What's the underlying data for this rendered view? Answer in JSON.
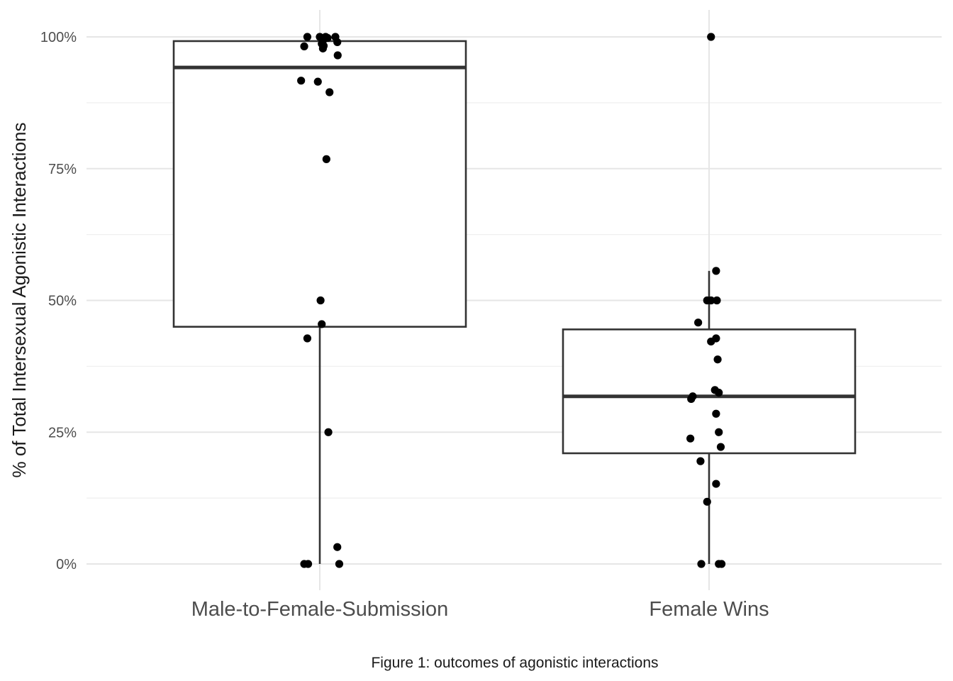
{
  "chart_data": {
    "type": "boxplot",
    "ylabel": "% of Total Intersexual Agonistic Interactions",
    "xlabel": "",
    "caption": "Figure 1: outcomes of agonistic interactions",
    "ylim": [
      0,
      1
    ],
    "y_ticks": [
      {
        "value": 0,
        "label": "0%"
      },
      {
        "value": 0.25,
        "label": "25%"
      },
      {
        "value": 0.5,
        "label": "50%"
      },
      {
        "value": 0.75,
        "label": "75%"
      },
      {
        "value": 1,
        "label": "100%"
      }
    ],
    "grid": true,
    "categories": [
      "Male-to-Female-Submission",
      "Female Wins"
    ],
    "boxes": [
      {
        "category": "Male-to-Female-Submission",
        "min": 0,
        "q1": 0.45,
        "median": 0.942,
        "q3": 0.992,
        "max": 1.0,
        "points": [
          [
            -0.032,
            1.0
          ],
          [
            0.0,
            1.0
          ],
          [
            0.015,
            1.0
          ],
          [
            0.04,
            1.0
          ],
          [
            0.02,
            0.998
          ],
          [
            0.008,
            0.993
          ],
          [
            0.045,
            0.99
          ],
          [
            0.005,
            0.987
          ],
          [
            0.01,
            0.983
          ],
          [
            -0.04,
            0.982
          ],
          [
            0.008,
            0.978
          ],
          [
            0.046,
            0.965
          ],
          [
            -0.048,
            0.917
          ],
          [
            -0.005,
            0.915
          ],
          [
            0.025,
            0.895
          ],
          [
            0.017,
            0.768
          ],
          [
            0.002,
            0.5
          ],
          [
            0.005,
            0.455
          ],
          [
            -0.032,
            0.428
          ],
          [
            0.022,
            0.25
          ],
          [
            0.045,
            0.032
          ],
          [
            -0.04,
            0.0
          ],
          [
            -0.03,
            0.0
          ],
          [
            0.05,
            0.0
          ]
        ]
      },
      {
        "category": "Female Wins",
        "min": 0,
        "q1": 0.21,
        "median": 0.318,
        "q3": 0.445,
        "max": 0.556,
        "points": [
          [
            0.005,
            1.0
          ],
          [
            0.018,
            0.556
          ],
          [
            -0.005,
            0.5
          ],
          [
            0.005,
            0.5
          ],
          [
            0.02,
            0.5
          ],
          [
            -0.028,
            0.458
          ],
          [
            0.018,
            0.428
          ],
          [
            0.005,
            0.422
          ],
          [
            0.022,
            0.388
          ],
          [
            0.015,
            0.33
          ],
          [
            0.025,
            0.325
          ],
          [
            -0.042,
            0.318
          ],
          [
            -0.046,
            0.313
          ],
          [
            0.018,
            0.285
          ],
          [
            0.025,
            0.25
          ],
          [
            -0.048,
            0.238
          ],
          [
            0.03,
            0.222
          ],
          [
            -0.022,
            0.195
          ],
          [
            0.018,
            0.152
          ],
          [
            -0.005,
            0.118
          ],
          [
            -0.02,
            0.0
          ],
          [
            0.025,
            0.0
          ],
          [
            0.032,
            0.0
          ]
        ]
      }
    ]
  }
}
